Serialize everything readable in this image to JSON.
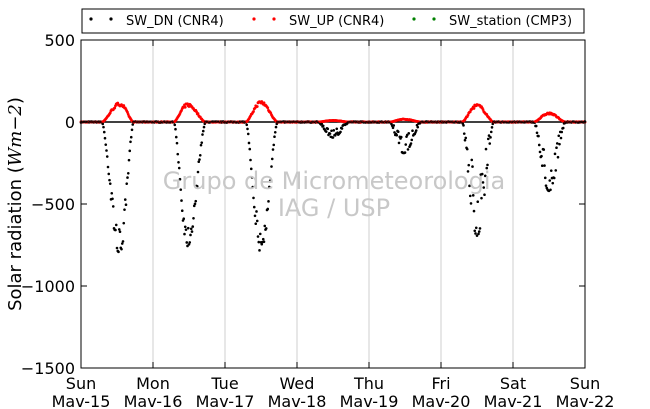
{
  "chart_data": {
    "type": "scatter",
    "ylabel_prefix": "Solar radiation (",
    "ylabel_unit": "Wm−2",
    "ylabel_suffix": ")",
    "ylim": [
      -1500,
      500
    ],
    "yticks": [
      -1500,
      -1000,
      -500,
      0,
      500
    ],
    "ytick_labels": [
      "−1500",
      "−1000",
      "−500",
      "0",
      "500"
    ],
    "xlim_days": [
      0,
      7
    ],
    "xticks": [
      {
        "day": "Sun",
        "date": "Mav-15"
      },
      {
        "day": "Mon",
        "date": "Mav-16"
      },
      {
        "day": "Tue",
        "date": "Mav-17"
      },
      {
        "day": "Wed",
        "date": "Mav-18"
      },
      {
        "day": "Thu",
        "date": "Mav-19"
      },
      {
        "day": "Fri",
        "date": "Mav-20"
      },
      {
        "day": "Sat",
        "date": "Mav-21"
      },
      {
        "day": "Sun",
        "date": "Mav-22"
      }
    ],
    "grid": "vertical",
    "legend_position": "top",
    "watermark_lines": [
      "Grupo de Micrometeorologia",
      "IAG / USP"
    ],
    "series": [
      {
        "name": "SW_DN (CNR4)",
        "color": "#000000",
        "daily_min": [
          -770,
          -720,
          -760,
          -90,
          -180,
          -660,
          -400
        ],
        "peak_time": [
          0.54,
          0.48,
          0.5,
          0.5,
          0.48,
          0.5,
          0.5
        ]
      },
      {
        "name": "SW_UP (CNR4)",
        "color": "#ff0000",
        "daily_max": [
          115,
          110,
          125,
          10,
          18,
          105,
          55
        ],
        "peak_time": [
          0.54,
          0.48,
          0.5,
          0.5,
          0.48,
          0.5,
          0.5
        ]
      },
      {
        "name": "SW_station (CMP3)",
        "color": "#008000",
        "values": []
      }
    ]
  }
}
